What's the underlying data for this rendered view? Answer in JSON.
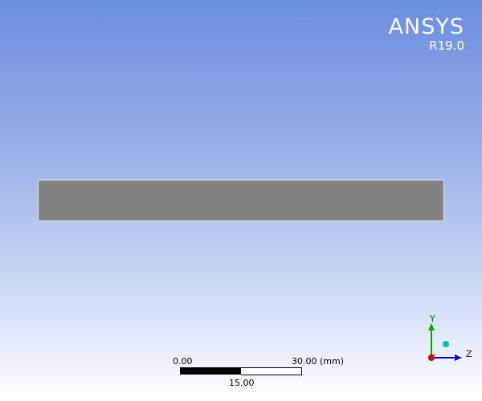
{
  "branding": {
    "name": "ANSYS",
    "version": "R19.0"
  },
  "scale_bar": {
    "min_label": "0.00",
    "max_label": "30.00 (mm)",
    "mid_label": "15.00"
  },
  "triad": {
    "y_label": "Y",
    "z_label": "Z",
    "colors": {
      "y_axis": "#00aa00",
      "z_axis": "#0000cc",
      "origin": "#cc0000",
      "sphere": "#00bbbb"
    }
  },
  "colors": {
    "background_top": "#6b8ddf",
    "background_bottom": "#ffffff",
    "part": "#838383"
  }
}
